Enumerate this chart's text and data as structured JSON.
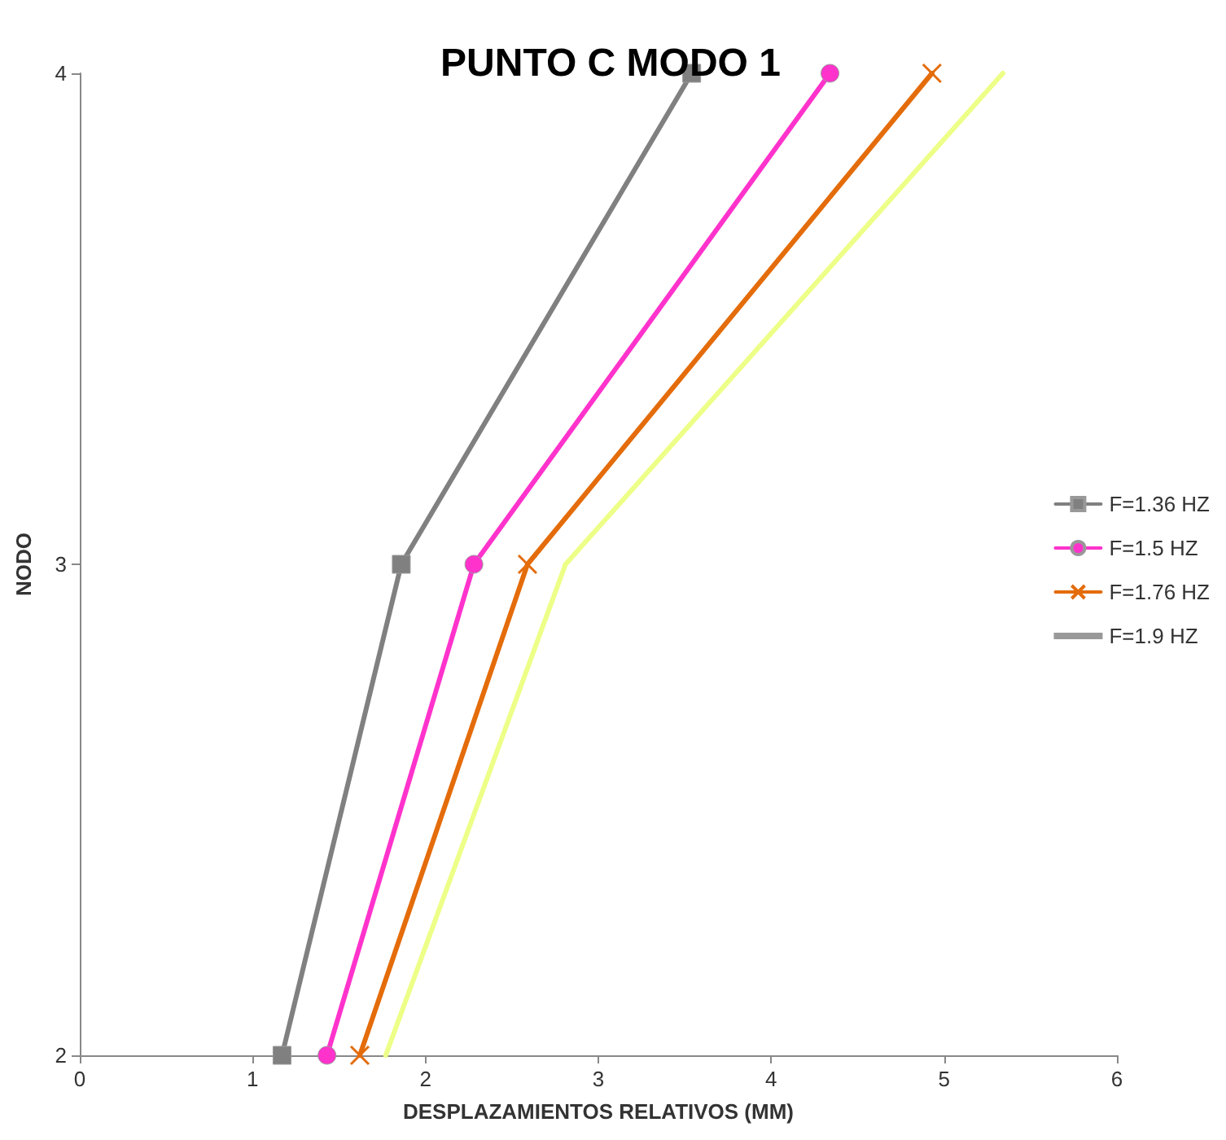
{
  "chart_data": {
    "type": "line",
    "title": "PUNTO C MODO 1",
    "xlabel": "DESPLAZAMIENTOS RELATIVOS (MM)",
    "ylabel": "NODO",
    "xlim": [
      0,
      6
    ],
    "xticks": [
      0,
      1,
      2,
      3,
      4,
      5,
      6
    ],
    "ylim": [
      2,
      4
    ],
    "yticks": [
      2,
      3,
      4
    ],
    "grid": false,
    "legend": "right",
    "line_style": "solid",
    "series": [
      {
        "name": "F=1.36 HZ",
        "color": "#808080",
        "marker": "square",
        "x": [
          1.17,
          1.86,
          3.54
        ],
        "values": [
          2,
          3,
          4
        ]
      },
      {
        "name": "F=1.5 HZ",
        "color": "#ff33cc",
        "marker": "circle",
        "x": [
          1.43,
          2.28,
          4.34
        ],
        "values": [
          2,
          3,
          4
        ]
      },
      {
        "name": "F=1.76 HZ",
        "color": "#e46c0a",
        "marker": "cross",
        "x": [
          1.62,
          2.59,
          4.93
        ],
        "values": [
          2,
          3,
          4
        ]
      },
      {
        "name": "F=1.9 HZ",
        "color": "#eeff88",
        "marker": "none",
        "x": [
          1.77,
          2.81,
          5.34
        ],
        "values": [
          2,
          3,
          4
        ]
      }
    ]
  }
}
